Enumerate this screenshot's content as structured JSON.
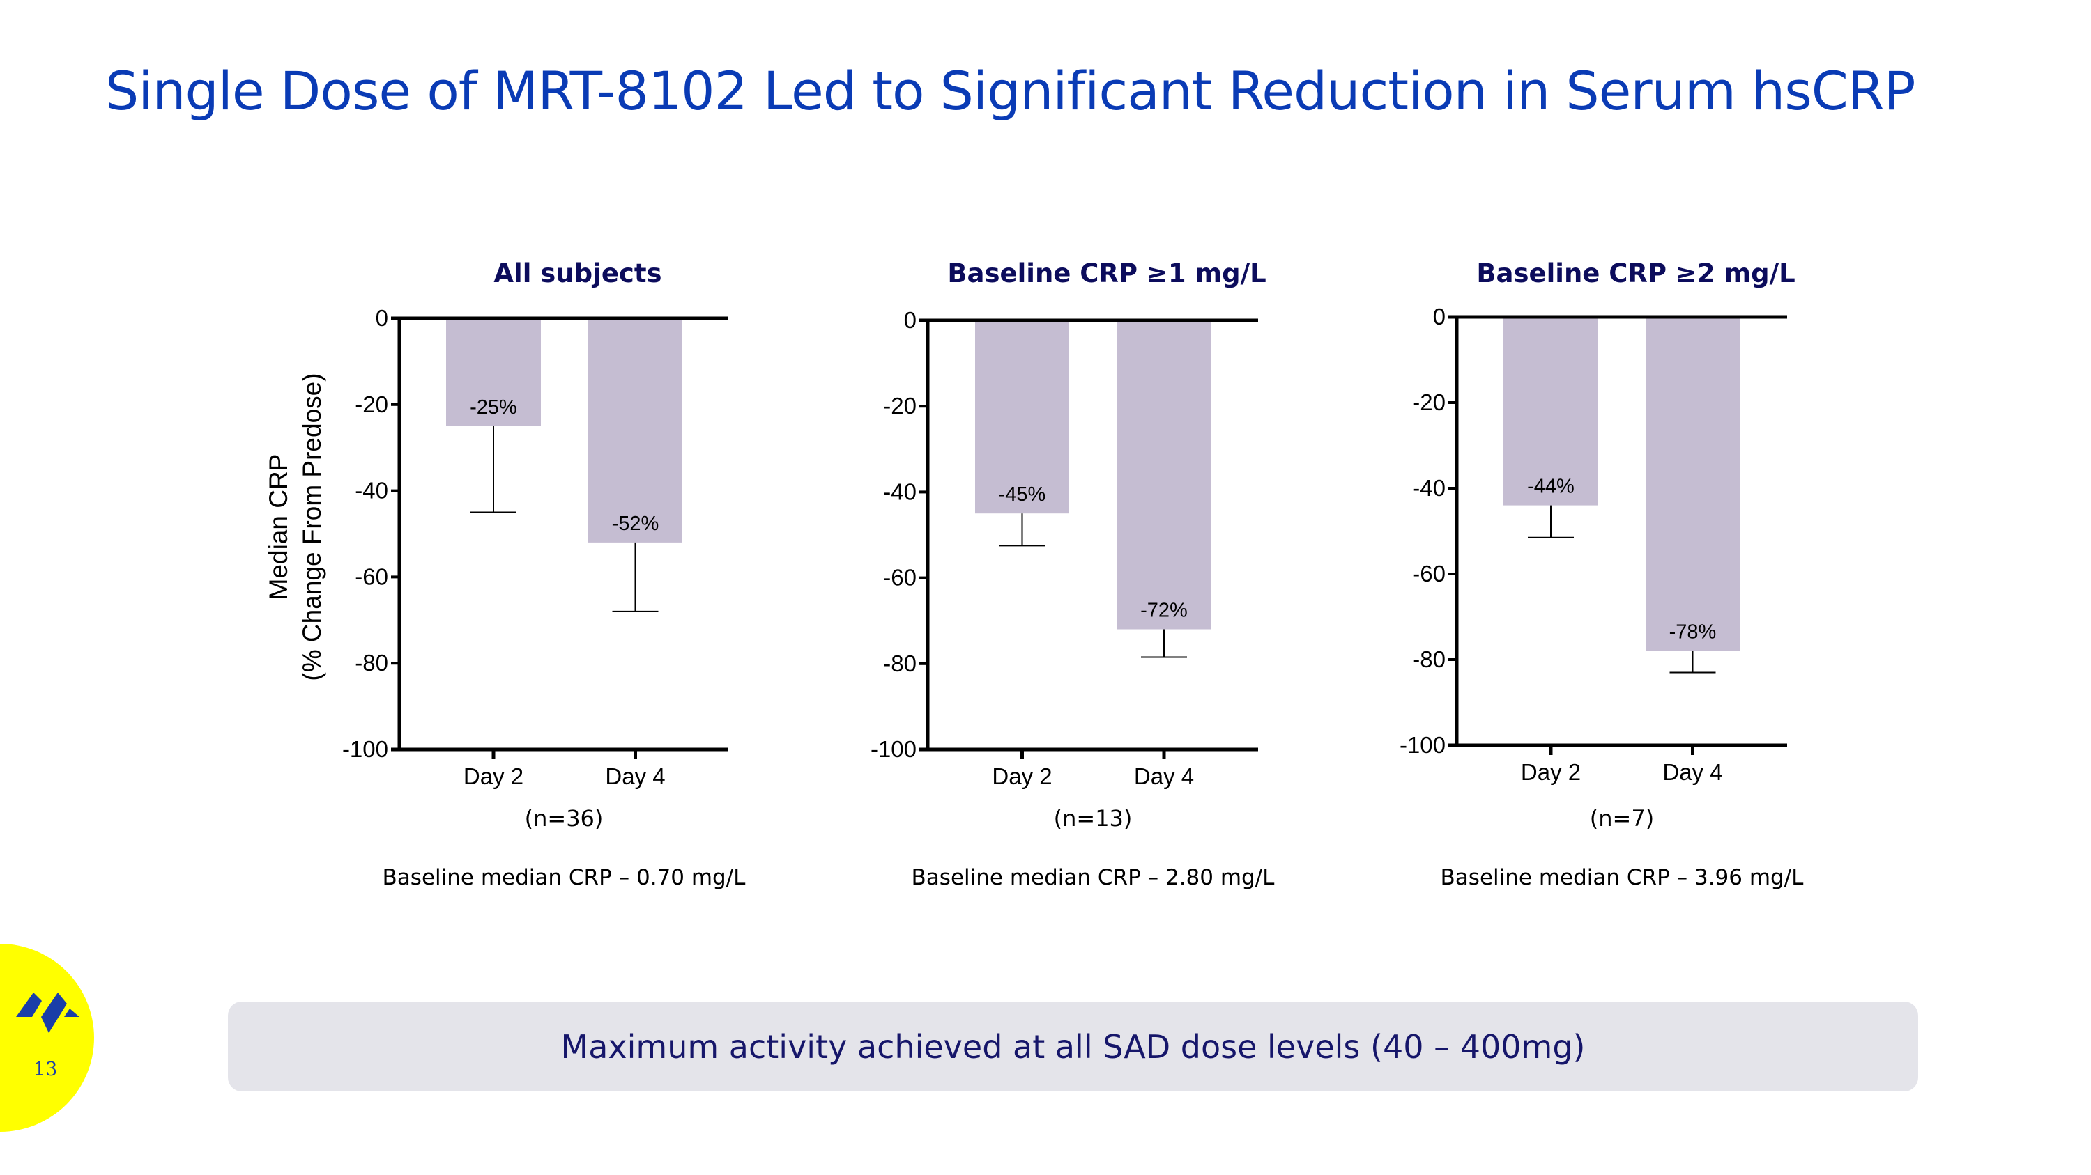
{
  "title": "Single Dose of MRT-8102 Led to Significant Reduction in Serum hsCRP",
  "banner": "Maximum activity achieved at all SAD dose levels (40 – 400mg)",
  "page_number": "13",
  "colors": {
    "title": "#0a3bb5",
    "bar": "#c5bdd2",
    "badge": "#ffff00",
    "banner_bg": "#e4e4ea"
  },
  "chart_data": [
    {
      "type": "bar",
      "title": "All subjects",
      "ylabel": "Median CRP\n(% Change From Predose)",
      "ylabel_lines": [
        "Median CRP",
        "(% Change From Predose)"
      ],
      "categories": [
        "Day 2",
        "Day 4"
      ],
      "values": [
        -25,
        -52
      ],
      "data_labels": [
        "-25%",
        "-52%"
      ],
      "error_lower": [
        -45,
        -68
      ],
      "ylim": [
        -100,
        0
      ],
      "yticks": [
        0,
        -20,
        -40,
        -60,
        -80,
        -100
      ],
      "n_label": "(n=36)",
      "footnote": "Baseline median CRP – 0.70 mg/L"
    },
    {
      "type": "bar",
      "title": "Baseline CRP ≥1 mg/L",
      "categories": [
        "Day 2",
        "Day 4"
      ],
      "values": [
        -45,
        -72
      ],
      "data_labels": [
        "-45%",
        "-72%"
      ],
      "error_lower": [
        -52.5,
        -78.5
      ],
      "ylim": [
        -100,
        0
      ],
      "yticks": [
        0,
        -20,
        -40,
        -60,
        -80,
        -100
      ],
      "n_label": "(n=13)",
      "footnote": "Baseline median CRP – 2.80 mg/L"
    },
    {
      "type": "bar",
      "title": "Baseline CRP ≥2 mg/L",
      "categories": [
        "Day 2",
        "Day 4"
      ],
      "values": [
        -44,
        -78
      ],
      "data_labels": [
        "-44%",
        "-78%"
      ],
      "error_lower": [
        -51.5,
        -83
      ],
      "ylim": [
        -100,
        0
      ],
      "yticks": [
        0,
        -20,
        -40,
        -60,
        -80,
        -100
      ],
      "n_label": "(n=7)",
      "footnote": "Baseline median CRP – 3.96 mg/L"
    }
  ]
}
